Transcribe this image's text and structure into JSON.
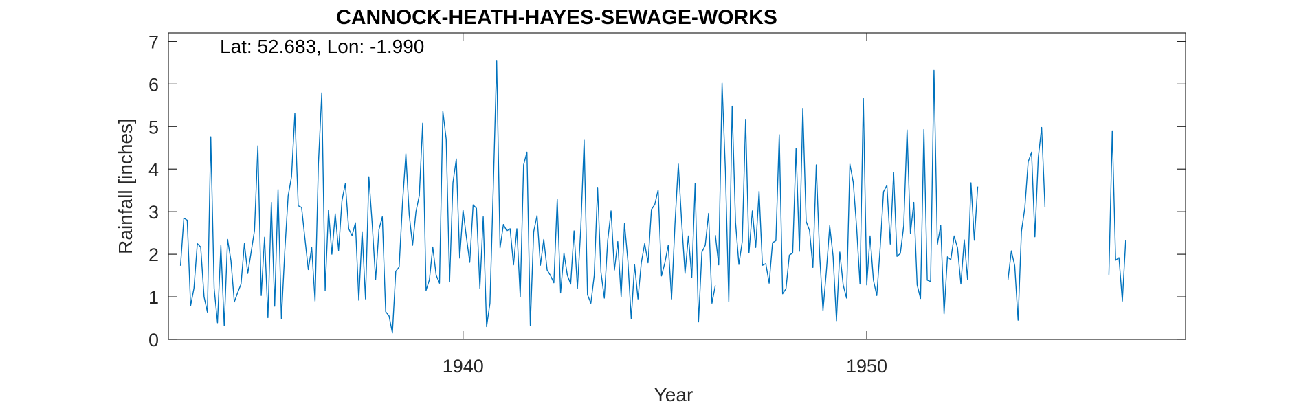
{
  "chart_data": {
    "type": "line",
    "title": "CANNOCK-HEATH-HAYES-SEWAGE-WORKS",
    "annotation": "Lat: 52.683, Lon: -1.990",
    "xlabel": "Year",
    "ylabel": "Rainfall [inches]",
    "xlim": [
      1932.7,
      1957.9
    ],
    "ylim": [
      0,
      7.2
    ],
    "xticks": [
      1940,
      1950
    ],
    "xtick_labels": [
      "1940",
      "1950"
    ],
    "yticks": [
      0,
      1,
      2,
      3,
      4,
      5,
      6,
      7
    ],
    "ytick_labels": [
      "0",
      "1",
      "2",
      "3",
      "4",
      "5",
      "6",
      "7"
    ],
    "grid": false,
    "line_color": "#0072BD",
    "series": [
      {
        "start_year": 1933.0,
        "step": 0.08333,
        "values": [
          1.73,
          2.85,
          2.8,
          0.79,
          1.2,
          2.25,
          2.17,
          1.0,
          0.64,
          4.76,
          1.2,
          0.39,
          2.21,
          0.32,
          2.35,
          1.85,
          0.88,
          1.1,
          1.3,
          2.25,
          1.55,
          2.05,
          2.56,
          4.55,
          1.03,
          2.4,
          0.51,
          3.22,
          0.78,
          3.52,
          0.48,
          2.06,
          3.37,
          3.82,
          5.31,
          3.14,
          3.1,
          2.36,
          1.64,
          2.16,
          0.9,
          4.12,
          5.79,
          1.15,
          3.04,
          2.0,
          2.95,
          2.09,
          3.26,
          3.66,
          2.6,
          2.44,
          2.74,
          0.92,
          2.53,
          0.95,
          3.82,
          2.7,
          1.4,
          2.58,
          2.88,
          0.65,
          0.55,
          0.15,
          1.6,
          1.7,
          3.2,
          4.36,
          2.93,
          2.21,
          3.0,
          3.38,
          5.08,
          1.15,
          1.4,
          2.17,
          1.51,
          1.32,
          5.36,
          4.7,
          1.35,
          3.68,
          4.24,
          1.91,
          3.04,
          2.4,
          1.81,
          3.16,
          3.08,
          1.2,
          2.88,
          0.3,
          0.85,
          3.6,
          6.54,
          2.15,
          2.7,
          2.55,
          2.6,
          1.75,
          2.6,
          1.0,
          4.1,
          4.4,
          0.33,
          2.53,
          2.91,
          1.74,
          2.35,
          1.63,
          1.5,
          1.33,
          3.29,
          1.09,
          2.03,
          1.51,
          1.3,
          2.55,
          1.2,
          2.6,
          4.68,
          1.05,
          0.85,
          1.5,
          3.57,
          1.58,
          0.97,
          2.32,
          3.02,
          1.63,
          2.3,
          1.0,
          2.72,
          1.85,
          0.48,
          1.75,
          0.95,
          1.8,
          2.25,
          1.8,
          3.05,
          3.17,
          3.51,
          1.49,
          1.8,
          2.21,
          0.95,
          2.7,
          4.12,
          2.75,
          1.55,
          2.43,
          1.45,
          3.67,
          0.41,
          2.05,
          2.21,
          2.96,
          0.85,
          1.27
        ]
      },
      {
        "start_year": 1946.25,
        "step": 0.08333,
        "values": [
          2.45,
          1.75,
          6.02,
          3.95,
          0.88,
          5.48,
          2.75,
          1.76,
          2.3,
          5.17,
          2.03,
          3.02,
          2.16,
          3.48,
          1.74,
          1.78,
          1.32,
          2.27,
          2.32,
          4.81,
          1.07,
          1.19,
          1.98,
          2.03,
          4.49,
          2.07,
          5.43,
          2.77,
          2.56,
          1.69,
          4.1,
          2.0,
          0.67,
          1.6,
          2.67,
          1.96,
          0.44,
          2.05,
          1.28,
          0.97,
          4.12,
          3.69,
          2.63,
          1.3,
          5.66,
          1.28,
          2.43,
          1.39,
          1.03,
          2.16,
          3.47,
          3.62,
          2.24,
          3.92,
          1.95,
          2.02,
          2.67,
          4.92,
          2.49,
          3.22,
          1.28,
          0.96,
          4.93,
          1.39,
          1.36,
          6.32,
          2.23,
          2.68,
          0.6,
          1.94,
          1.87,
          2.43,
          2.15,
          1.3,
          2.34,
          1.4,
          3.68,
          2.33,
          3.59
        ]
      },
      {
        "start_year": 1953.5,
        "step": 0.08333,
        "values": [
          1.4,
          2.08,
          1.73,
          0.45,
          2.54,
          3.09,
          4.17,
          4.4,
          2.41,
          4.27,
          4.98,
          3.1
        ]
      },
      {
        "start_year": 1956.0,
        "step": 0.08333,
        "values": [
          1.52,
          4.9,
          1.86,
          1.92,
          0.9,
          2.34
        ]
      }
    ]
  }
}
